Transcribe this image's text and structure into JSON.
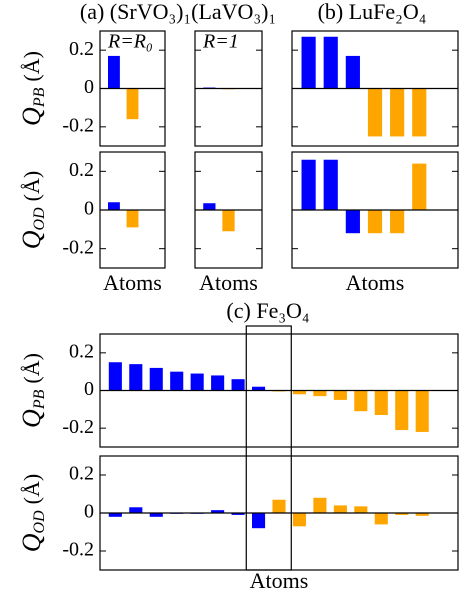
{
  "chart_data": [
    {
      "type": "bar",
      "title": "(a) (SrVO₃)₁(LaVO₃)₁",
      "annotation": "R=R₀",
      "ylabel": {
        "symbol": "Q",
        "subscript": "PB",
        "unit": "(Å)"
      },
      "values": [
        0.17,
        -0.16
      ],
      "colors": [
        "#0000ff",
        "#ffa500"
      ],
      "ylim": [
        -0.3,
        0.3
      ],
      "yticks": [
        0.2,
        0,
        -0.2
      ]
    },
    {
      "type": "bar",
      "xlabel": "Atoms",
      "ylabel": {
        "symbol": "Q",
        "subscript": "OD",
        "unit": "(Å)"
      },
      "values": [
        0.04,
        -0.09
      ],
      "colors": [
        "#0000ff",
        "#ffa500"
      ],
      "ylim": [
        -0.3,
        0.3
      ],
      "yticks": [
        0.2,
        0,
        -0.2
      ]
    },
    {
      "type": "bar",
      "annotation": "R=1",
      "values": [
        0.005,
        -0.003
      ],
      "colors": [
        "#0000ff",
        "#ffa500"
      ],
      "ylim": [
        -0.3,
        0.3
      ],
      "yticks": [
        0.2,
        0,
        -0.2
      ]
    },
    {
      "type": "bar",
      "xlabel": "Atoms",
      "values": [
        0.035,
        -0.11
      ],
      "colors": [
        "#0000ff",
        "#ffa500"
      ],
      "ylim": [
        -0.3,
        0.3
      ],
      "yticks": [
        0.2,
        0,
        -0.2
      ]
    },
    {
      "type": "bar",
      "title": "(b) LuFe₂O₄",
      "values": [
        0.27,
        0.27,
        0.17,
        -0.25,
        -0.25,
        -0.25
      ],
      "colors": [
        "#0000ff",
        "#0000ff",
        "#0000ff",
        "#ffa500",
        "#ffa500",
        "#ffa500"
      ],
      "ylim": [
        -0.3,
        0.3
      ],
      "yticks": [
        0.2,
        0,
        -0.2
      ]
    },
    {
      "type": "bar",
      "xlabel": "Atoms",
      "values": [
        0.26,
        0.26,
        -0.12,
        -0.12,
        -0.12,
        0.24
      ],
      "colors": [
        "#0000ff",
        "#0000ff",
        "#0000ff",
        "#ffa500",
        "#ffa500",
        "#ffa500"
      ],
      "ylim": [
        -0.3,
        0.3
      ],
      "yticks": [
        0.2,
        0,
        -0.2
      ]
    },
    {
      "type": "bar",
      "title": "(c) Fe₃O₄",
      "ylabel": {
        "symbol": "Q",
        "subscript": "PB",
        "unit": "(Å)"
      },
      "values": [
        0.15,
        0.14,
        0.12,
        0.1,
        0.09,
        0.08,
        0.06,
        0.02,
        -0.005,
        -0.02,
        -0.03,
        -0.05,
        -0.11,
        -0.13,
        -0.21,
        -0.22
      ],
      "colors": [
        "#0000ff",
        "#0000ff",
        "#0000ff",
        "#0000ff",
        "#0000ff",
        "#0000ff",
        "#0000ff",
        "#0000ff",
        "#ffa500",
        "#ffa500",
        "#ffa500",
        "#ffa500",
        "#ffa500",
        "#ffa500",
        "#ffa500",
        "#ffa500"
      ],
      "ylim": [
        -0.3,
        0.3
      ],
      "yticks": [
        0.2,
        0,
        -0.2
      ]
    },
    {
      "type": "bar",
      "xlabel": "Atoms",
      "ylabel": {
        "symbol": "Q",
        "subscript": "OD",
        "unit": "(Å)"
      },
      "values": [
        -0.02,
        0.03,
        -0.02,
        0,
        0,
        0.015,
        -0.01,
        -0.08,
        0.07,
        -0.07,
        0.08,
        0.04,
        0.035,
        -0.06,
        -0.01,
        -0.015
      ],
      "colors": [
        "#0000ff",
        "#0000ff",
        "#0000ff",
        "#0000ff",
        "#0000ff",
        "#0000ff",
        "#0000ff",
        "#0000ff",
        "#ffa500",
        "#ffa500",
        "#ffa500",
        "#ffa500",
        "#ffa500",
        "#ffa500",
        "#ffa500",
        "#ffa500"
      ],
      "ylim": [
        -0.3,
        0.3
      ],
      "yticks": [
        0.2,
        0,
        -0.2
      ]
    }
  ]
}
